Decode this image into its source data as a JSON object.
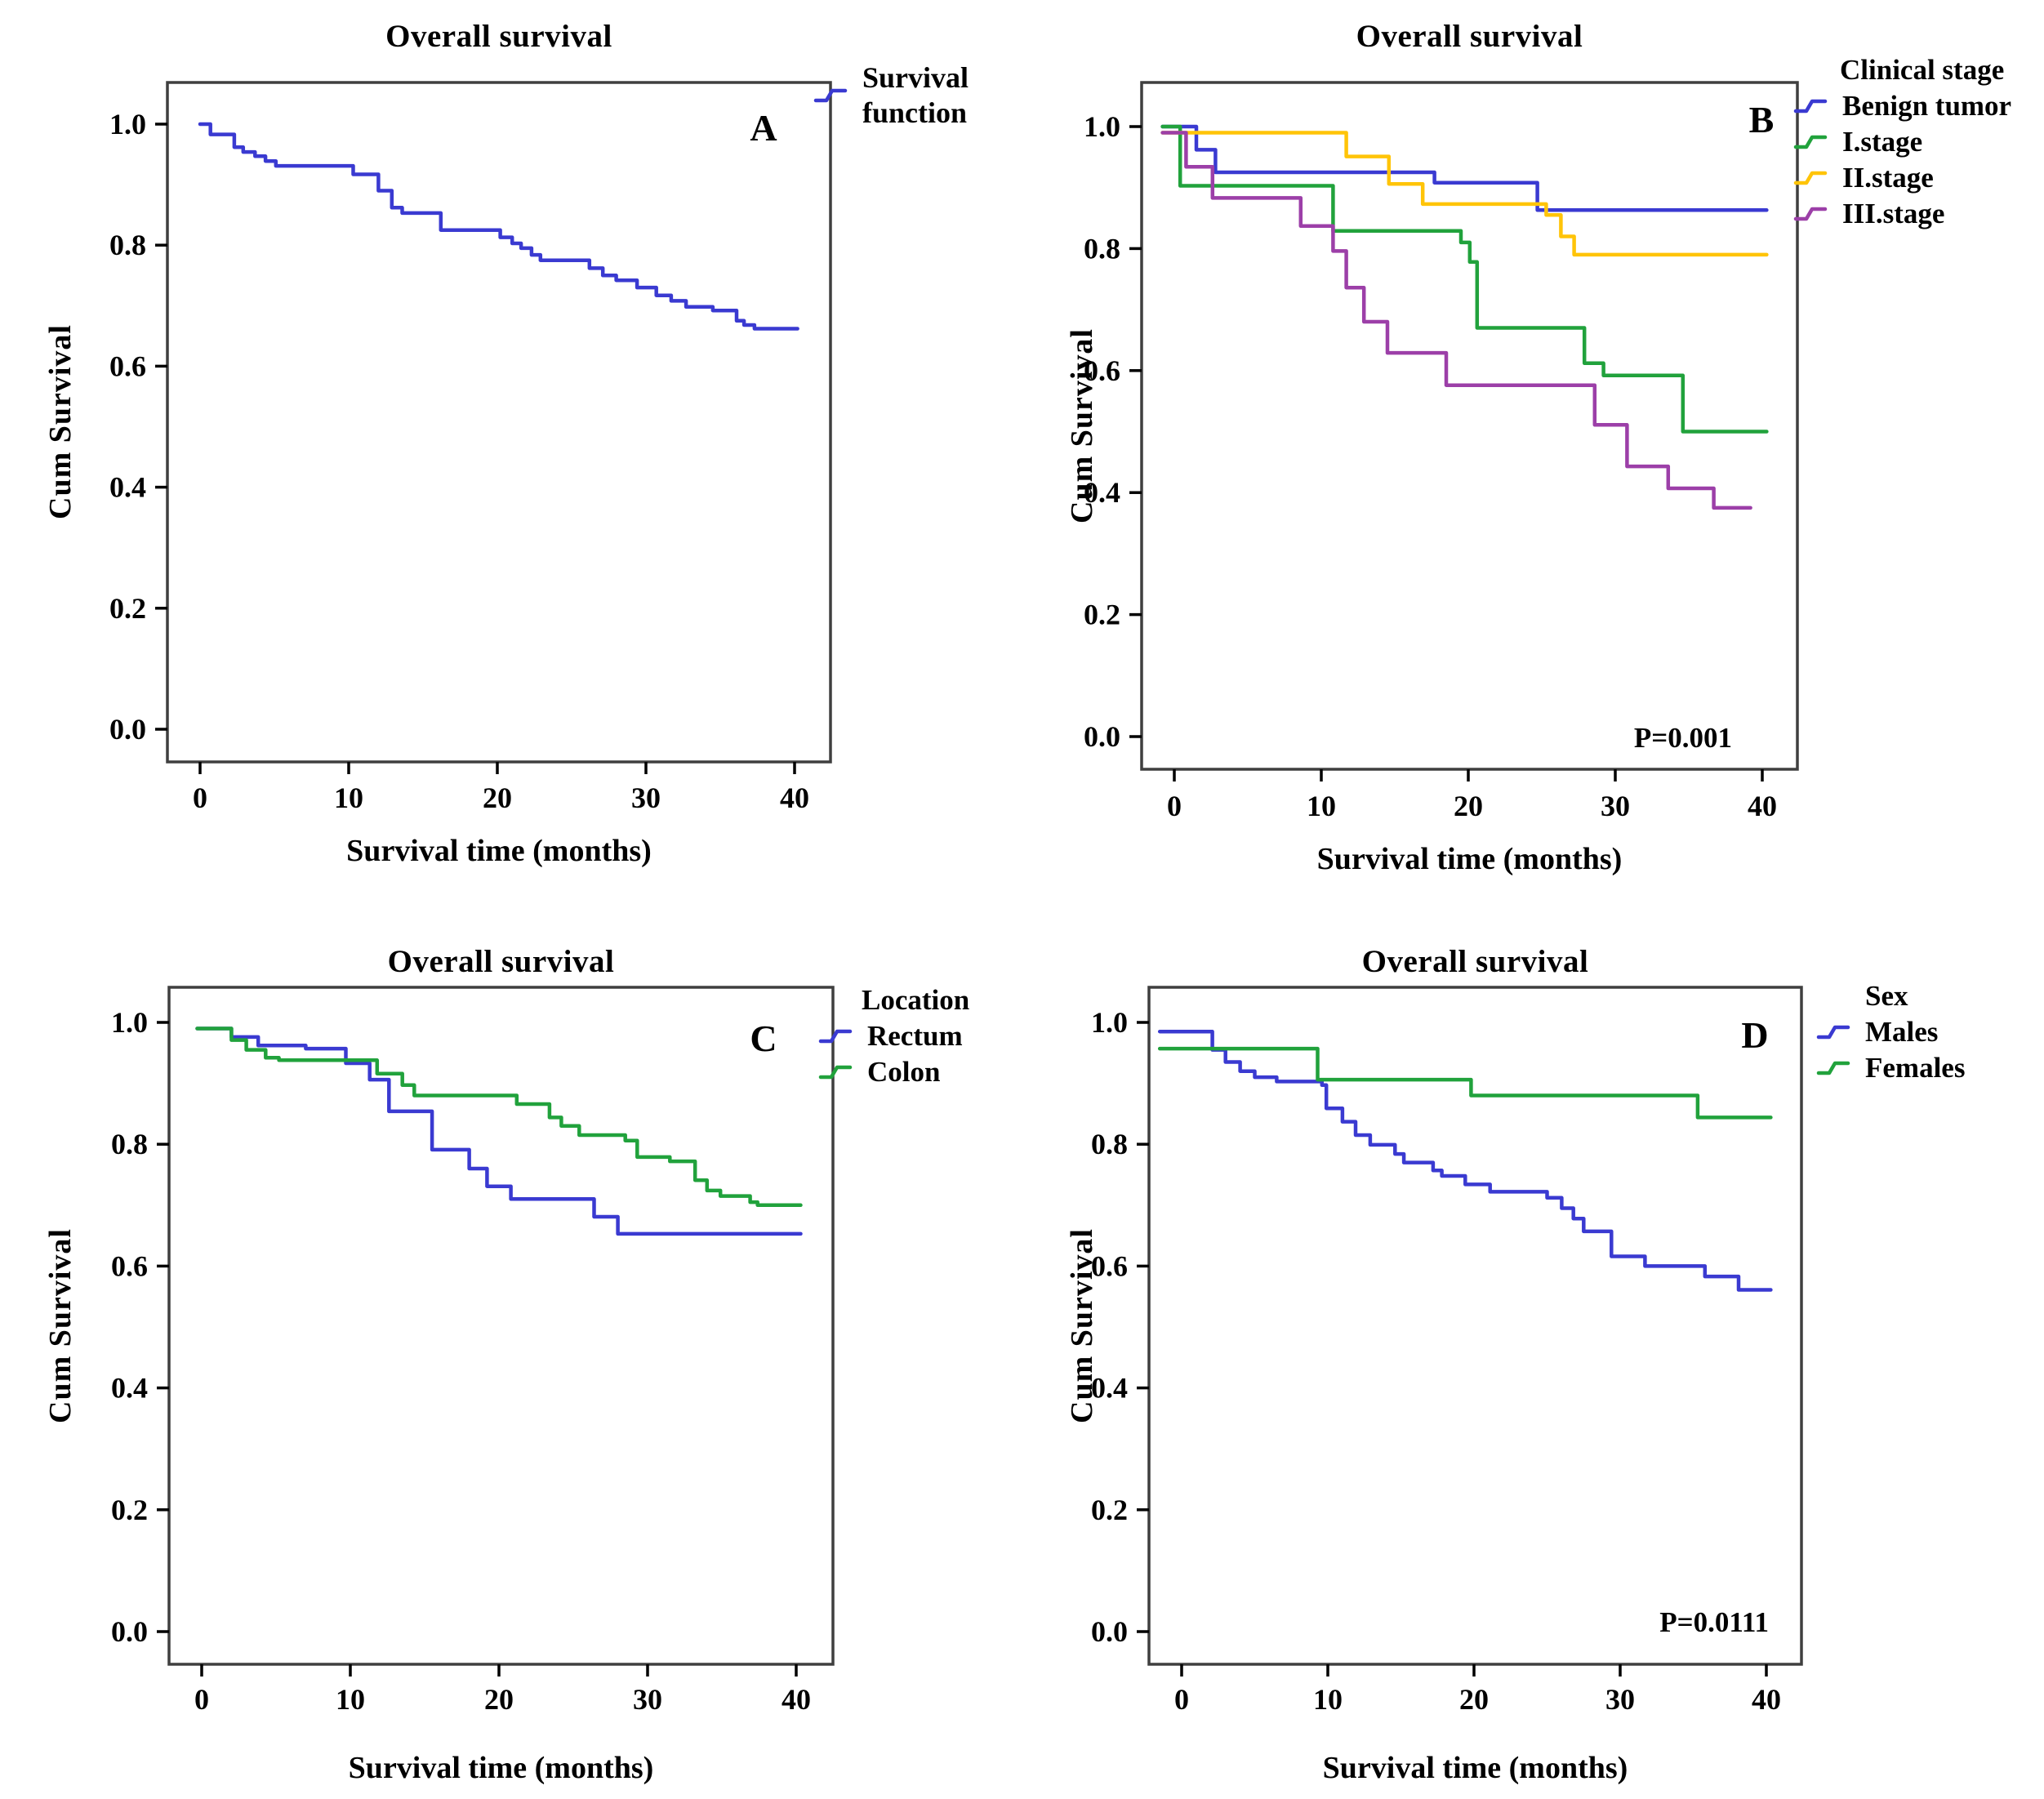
{
  "page": {
    "background": "#ffffff"
  },
  "chart_data": [
    {
      "panel_label": "A",
      "type": "line",
      "subtype": "kaplan-meier-step",
      "title": "Overall survival",
      "xlabel": "Survival time (months)",
      "ylabel": "Cum Survival",
      "x_ticks": [
        0,
        10,
        20,
        30,
        40
      ],
      "x_tick_labels": [
        "0",
        "10",
        "20",
        "30",
        "40"
      ],
      "y_ticks": [
        1.0,
        0.8,
        0.6,
        0.4,
        0.2,
        0.0
      ],
      "y_tick_labels": [
        "1.0",
        "0.8",
        "0.6",
        "0.4",
        "0.2",
        "0.0"
      ],
      "xlim": [
        -2,
        42
      ],
      "ylim": [
        -0.06,
        1.08
      ],
      "grid": false,
      "p_value": "",
      "legend": {
        "title": "",
        "position": "right-top",
        "entries": [
          {
            "label": "Survival function",
            "color": "#3a3ad1"
          }
        ]
      },
      "series": [
        {
          "name": "Survival function",
          "color": "#3a3ad1",
          "points": [
            [
              0,
              1.0
            ],
            [
              0.7,
              0.983
            ],
            [
              2.3,
              0.962
            ],
            [
              2.9,
              0.954
            ],
            [
              3.7,
              0.947
            ],
            [
              4.4,
              0.939
            ],
            [
              5.1,
              0.931
            ],
            [
              10.3,
              0.917
            ],
            [
              12.0,
              0.89
            ],
            [
              12.9,
              0.862
            ],
            [
              13.6,
              0.853
            ],
            [
              16.2,
              0.825
            ],
            [
              20.2,
              0.813
            ],
            [
              21.0,
              0.803
            ],
            [
              21.6,
              0.795
            ],
            [
              22.3,
              0.784
            ],
            [
              22.9,
              0.775
            ],
            [
              26.2,
              0.762
            ],
            [
              27.1,
              0.75
            ],
            [
              28.0,
              0.742
            ],
            [
              29.4,
              0.73
            ],
            [
              30.7,
              0.717
            ],
            [
              31.7,
              0.708
            ],
            [
              32.7,
              0.698
            ],
            [
              34.5,
              0.692
            ],
            [
              36.1,
              0.675
            ],
            [
              36.6,
              0.668
            ],
            [
              37.3,
              0.662
            ],
            [
              40.2,
              0.662
            ]
          ]
        }
      ]
    },
    {
      "panel_label": "B",
      "type": "line",
      "subtype": "kaplan-meier-step",
      "title": "Overall survival",
      "xlabel": "Survival time (months)",
      "ylabel": "Cum Survival",
      "x_ticks": [
        0,
        10,
        20,
        30,
        40
      ],
      "x_tick_labels": [
        "0",
        "10",
        "20",
        "30",
        "40"
      ],
      "y_ticks": [
        1.0,
        0.8,
        0.6,
        0.4,
        0.2,
        0.0
      ],
      "y_tick_labels": [
        "1.0",
        "0.8",
        "0.6",
        "0.4",
        "0.2",
        "0.0"
      ],
      "xlim": [
        -2,
        42
      ],
      "ylim": [
        -0.06,
        1.08
      ],
      "grid": false,
      "p_value": "P=0.001",
      "legend": {
        "title": "Clinical stage",
        "position": "right-top",
        "entries": [
          {
            "label": "Benign tumor",
            "color": "#3a3ad1"
          },
          {
            "label": "I.stage",
            "color": "#21a23c"
          },
          {
            "label": "II.stage",
            "color": "#ffc408"
          },
          {
            "label": "III.stage",
            "color": "#9c3fa8"
          }
        ]
      },
      "series": [
        {
          "name": "Benign tumor",
          "color": "#3a3ad1",
          "points": [
            [
              -0.8,
              1.0
            ],
            [
              1.5,
              0.962
            ],
            [
              2.8,
              0.925
            ],
            [
              17.7,
              0.908
            ],
            [
              24.7,
              0.863
            ],
            [
              40.3,
              0.863
            ]
          ]
        },
        {
          "name": "I.stage",
          "color": "#21a23c",
          "points": [
            [
              -0.8,
              1.0
            ],
            [
              0.4,
              0.903
            ],
            [
              10.8,
              0.829
            ],
            [
              19.5,
              0.81
            ],
            [
              20.1,
              0.778
            ],
            [
              20.6,
              0.67
            ],
            [
              27.9,
              0.612
            ],
            [
              29.2,
              0.592
            ],
            [
              34.6,
              0.5
            ],
            [
              40.3,
              0.5
            ]
          ]
        },
        {
          "name": "II.stage",
          "color": "#ffc408",
          "points": [
            [
              -0.8,
              0.99
            ],
            [
              11.7,
              0.951
            ],
            [
              14.6,
              0.906
            ],
            [
              16.9,
              0.873
            ],
            [
              25.3,
              0.855
            ],
            [
              26.3,
              0.82
            ],
            [
              27.2,
              0.79
            ],
            [
              40.3,
              0.79
            ]
          ]
        },
        {
          "name": "III.stage",
          "color": "#9c3fa8",
          "points": [
            [
              -0.8,
              0.99
            ],
            [
              0.8,
              0.934
            ],
            [
              2.6,
              0.883
            ],
            [
              8.6,
              0.837
            ],
            [
              10.8,
              0.796
            ],
            [
              11.7,
              0.736
            ],
            [
              12.9,
              0.68
            ],
            [
              14.5,
              0.629
            ],
            [
              18.5,
              0.576
            ],
            [
              28.6,
              0.511
            ],
            [
              30.8,
              0.443
            ],
            [
              33.6,
              0.407
            ],
            [
              36.7,
              0.375
            ],
            [
              39.2,
              0.375
            ]
          ]
        }
      ]
    },
    {
      "panel_label": "C",
      "type": "line",
      "subtype": "kaplan-meier-step",
      "title": "Overall survival",
      "xlabel": "Survival time (months)",
      "ylabel": "Cum Survival",
      "x_ticks": [
        0,
        10,
        20,
        30,
        40
      ],
      "x_tick_labels": [
        "0",
        "10",
        "20",
        "30",
        "40"
      ],
      "y_ticks": [
        1.0,
        0.8,
        0.6,
        0.4,
        0.2,
        0.0
      ],
      "y_tick_labels": [
        "1.0",
        "0.8",
        "0.6",
        "0.4",
        "0.2",
        "0.0"
      ],
      "xlim": [
        -2,
        42
      ],
      "ylim": [
        -0.06,
        1.08
      ],
      "grid": false,
      "p_value": "",
      "legend": {
        "title": "Location",
        "position": "right-top",
        "entries": [
          {
            "label": "Rectum",
            "color": "#3a3ad1"
          },
          {
            "label": "Colon",
            "color": "#21a23c"
          }
        ]
      },
      "series": [
        {
          "name": "Rectum",
          "color": "#3a3ad1",
          "points": [
            [
              -0.3,
              0.99
            ],
            [
              2.0,
              0.976
            ],
            [
              3.8,
              0.962
            ],
            [
              7.0,
              0.957
            ],
            [
              9.7,
              0.933
            ],
            [
              11.3,
              0.906
            ],
            [
              12.6,
              0.854
            ],
            [
              15.5,
              0.791
            ],
            [
              18.0,
              0.76
            ],
            [
              19.2,
              0.731
            ],
            [
              20.8,
              0.71
            ],
            [
              26.4,
              0.681
            ],
            [
              28.0,
              0.653
            ],
            [
              40.3,
              0.653
            ]
          ]
        },
        {
          "name": "Colon",
          "color": "#21a23c",
          "points": [
            [
              -0.3,
              0.99
            ],
            [
              2.0,
              0.971
            ],
            [
              3.0,
              0.955
            ],
            [
              4.3,
              0.942
            ],
            [
              5.2,
              0.938
            ],
            [
              11.8,
              0.916
            ],
            [
              13.5,
              0.897
            ],
            [
              14.3,
              0.88
            ],
            [
              21.2,
              0.866
            ],
            [
              23.4,
              0.844
            ],
            [
              24.2,
              0.83
            ],
            [
              25.4,
              0.815
            ],
            [
              28.5,
              0.806
            ],
            [
              29.3,
              0.779
            ],
            [
              31.5,
              0.772
            ],
            [
              33.2,
              0.741
            ],
            [
              34.0,
              0.724
            ],
            [
              34.9,
              0.715
            ],
            [
              36.9,
              0.705
            ],
            [
              37.4,
              0.7
            ],
            [
              40.3,
              0.7
            ]
          ]
        }
      ]
    },
    {
      "panel_label": "D",
      "type": "line",
      "subtype": "kaplan-meier-step",
      "title": "Overall survival",
      "xlabel": "Survival time (months)",
      "ylabel": "Cum Survival",
      "x_ticks": [
        0,
        10,
        20,
        30,
        40
      ],
      "x_tick_labels": [
        "0",
        "10",
        "20",
        "30",
        "40"
      ],
      "y_ticks": [
        1.0,
        0.8,
        0.6,
        0.4,
        0.2,
        0.0
      ],
      "y_tick_labels": [
        "1.0",
        "0.8",
        "0.6",
        "0.4",
        "0.2",
        "0.0"
      ],
      "xlim": [
        -2,
        42
      ],
      "ylim": [
        -0.06,
        1.08
      ],
      "grid": false,
      "p_value": "P=0.0111",
      "legend": {
        "title": "Sex",
        "position": "right-top",
        "entries": [
          {
            "label": "Males",
            "color": "#3a3ad1"
          },
          {
            "label": "Females",
            "color": "#21a23c"
          }
        ]
      },
      "series": [
        {
          "name": "Males",
          "color": "#3a3ad1",
          "points": [
            [
              -1.5,
              0.985
            ],
            [
              2.1,
              0.955
            ],
            [
              3.0,
              0.935
            ],
            [
              4.0,
              0.92
            ],
            [
              5.0,
              0.91
            ],
            [
              6.5,
              0.903
            ],
            [
              9.6,
              0.897
            ],
            [
              9.9,
              0.859
            ],
            [
              11.0,
              0.837
            ],
            [
              11.9,
              0.815
            ],
            [
              12.9,
              0.799
            ],
            [
              14.6,
              0.784
            ],
            [
              15.2,
              0.77
            ],
            [
              17.2,
              0.757
            ],
            [
              17.8,
              0.748
            ],
            [
              19.4,
              0.734
            ],
            [
              21.1,
              0.722
            ],
            [
              25.0,
              0.712
            ],
            [
              26.0,
              0.695
            ],
            [
              26.8,
              0.678
            ],
            [
              27.5,
              0.657
            ],
            [
              29.4,
              0.616
            ],
            [
              31.7,
              0.6
            ],
            [
              35.8,
              0.583
            ],
            [
              38.1,
              0.561
            ],
            [
              40.3,
              0.561
            ]
          ]
        },
        {
          "name": "Females",
          "color": "#21a23c",
          "points": [
            [
              -1.5,
              0.957
            ],
            [
              9.3,
              0.906
            ],
            [
              19.8,
              0.88
            ],
            [
              35.3,
              0.844
            ],
            [
              40.3,
              0.844
            ]
          ]
        }
      ]
    }
  ]
}
